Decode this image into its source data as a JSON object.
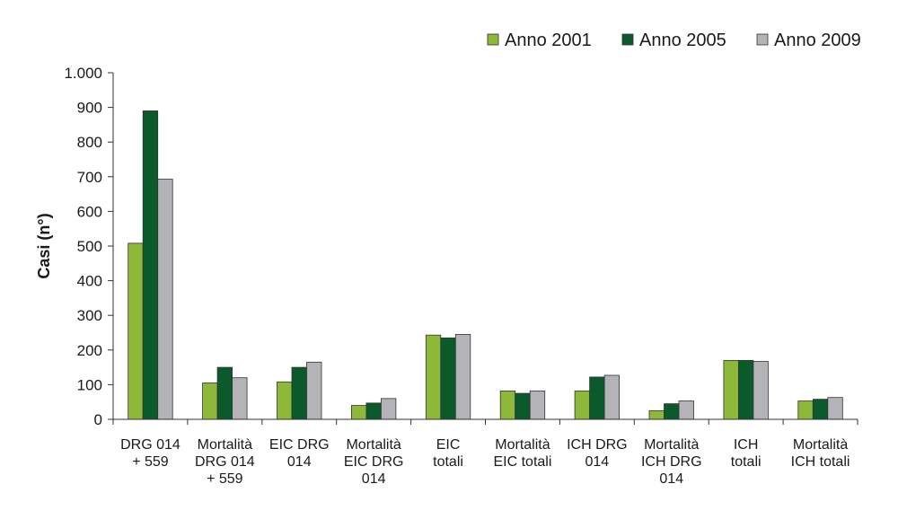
{
  "chart_data": {
    "type": "bar",
    "ylabel": "Casi (n°)",
    "ylim": [
      0,
      1000
    ],
    "y_ticks": [
      {
        "value": 0,
        "label": "0"
      },
      {
        "value": 100,
        "label": "100"
      },
      {
        "value": 200,
        "label": "200"
      },
      {
        "value": 300,
        "label": "300"
      },
      {
        "value": 400,
        "label": "400"
      },
      {
        "value": 500,
        "label": "500"
      },
      {
        "value": 600,
        "label": "600"
      },
      {
        "value": 700,
        "label": "700"
      },
      {
        "value": 800,
        "label": "800"
      },
      {
        "value": 900,
        "label": "900"
      },
      {
        "value": 1000,
        "label": "1.000"
      }
    ],
    "categories": [
      [
        "DRG 014",
        "+ 559"
      ],
      [
        "Mortalità",
        "DRG 014",
        "+ 559"
      ],
      [
        "EIC DRG",
        "014"
      ],
      [
        "Mortalità",
        "EIC DRG",
        "014"
      ],
      [
        "EIC",
        "totali"
      ],
      [
        "Mortalità",
        "EIC totali"
      ],
      [
        "ICH DRG",
        "014"
      ],
      [
        "Mortalità",
        "ICH DRG",
        "014"
      ],
      [
        "ICH",
        "totali"
      ],
      [
        "Mortalità",
        "ICH totali"
      ]
    ],
    "series": [
      {
        "name": "Anno 2001",
        "color": "#8db83a",
        "values": [
          508,
          105,
          108,
          40,
          243,
          82,
          82,
          25,
          170,
          53
        ]
      },
      {
        "name": "Anno 2005",
        "color": "#0b5a2c",
        "values": [
          890,
          150,
          150,
          47,
          235,
          75,
          122,
          45,
          170,
          58
        ]
      },
      {
        "name": "Anno 2009",
        "color": "#b3b3b8",
        "values": [
          693,
          120,
          165,
          60,
          245,
          82,
          127,
          53,
          167,
          63
        ]
      }
    ],
    "legend_position": "top-right",
    "grid": false
  }
}
